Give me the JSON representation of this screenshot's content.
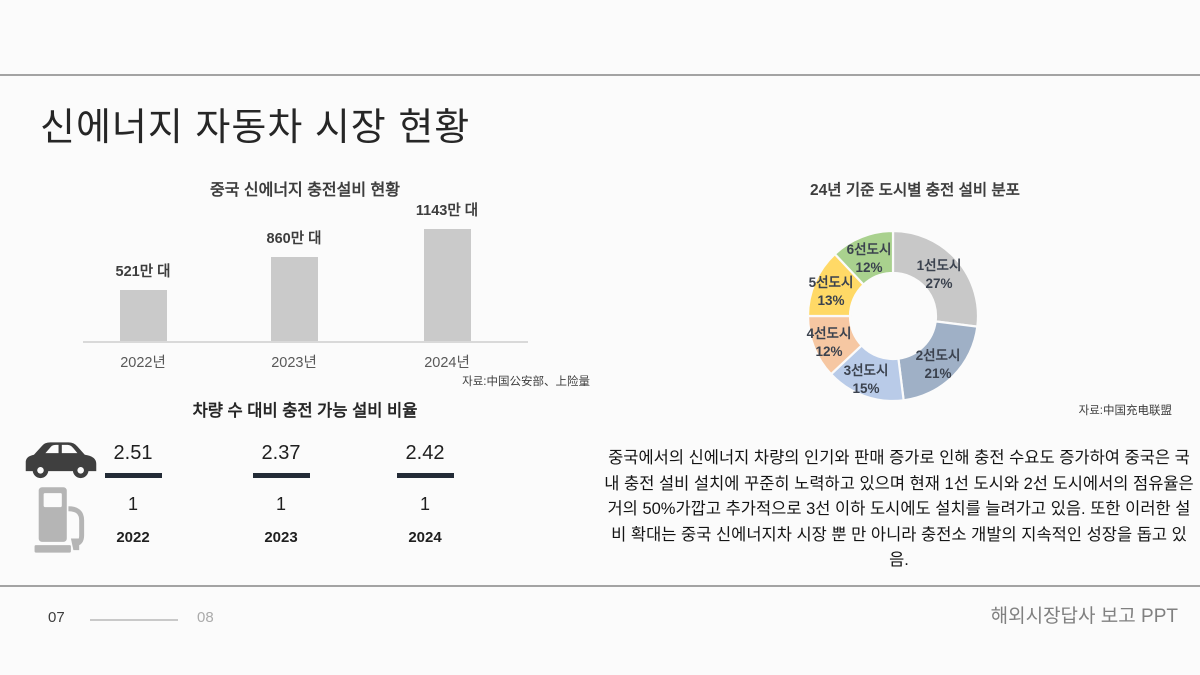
{
  "slide": {
    "title": "신에너지 자동차 시장 현황"
  },
  "chart_data": [
    {
      "type": "bar",
      "title": "중국 신에너지 충전설비 현황",
      "categories": [
        "2022년",
        "2023년",
        "2024년"
      ],
      "values": [
        521,
        860,
        1143
      ],
      "value_labels": [
        "521만 대",
        "860만 대",
        "1143만 대"
      ],
      "unit": "만 대",
      "ylim": [
        0,
        1143
      ],
      "grid": false,
      "legend": "none",
      "bar_color": "#cacaca",
      "source": "자료:中国公安部、上险量"
    },
    {
      "type": "pie",
      "subtype": "donut",
      "title": "24년 기준 도시별 충전 설비 분포",
      "labels": [
        "1선도시",
        "2선도시",
        "3선도시",
        "4선도시",
        "5선도시",
        "6선도시"
      ],
      "values": [
        27,
        21,
        15,
        12,
        13,
        12
      ],
      "value_labels": [
        "27%",
        "21%",
        "15%",
        "12%",
        "13%",
        "12%"
      ],
      "colors": [
        "#c8c8c8",
        "#9fb0c6",
        "#b9cbe8",
        "#f6c7a2",
        "#ffd966",
        "#a9d18e"
      ],
      "start_angle_deg": 0,
      "direction": "clockwise",
      "source": "자료:中国充电联盟"
    },
    {
      "type": "table",
      "title": "차량 수 대비 충전 가능 설비 비율",
      "categories": [
        "2022",
        "2023",
        "2024"
      ],
      "numerators": [
        "2.51",
        "2.37",
        "2.42"
      ],
      "denominators": [
        "1",
        "1",
        "1"
      ]
    }
  ],
  "paragraph": "중국에서의 신에너지 차량의 인기와 판매 증가로 인해 충전 수요도 증가하여 중국은 국내 충전 설비 설치에 꾸준히 노력하고 있으며 현재 1선 도시와 2선 도시에서의 점유율은 거의 50%가깝고 추가적으로 3선 이하 도시에도 설치를 늘려가고 있음. 또한 이러한 설비 확대는 중국 신에너지차 시장 뿐 만 아니라 충전소 개발의 지속적인 성장을 돕고 있음.",
  "footer": {
    "page_current": "07",
    "page_next": "08",
    "deck_title": "해외시장답사 보고 PPT"
  }
}
